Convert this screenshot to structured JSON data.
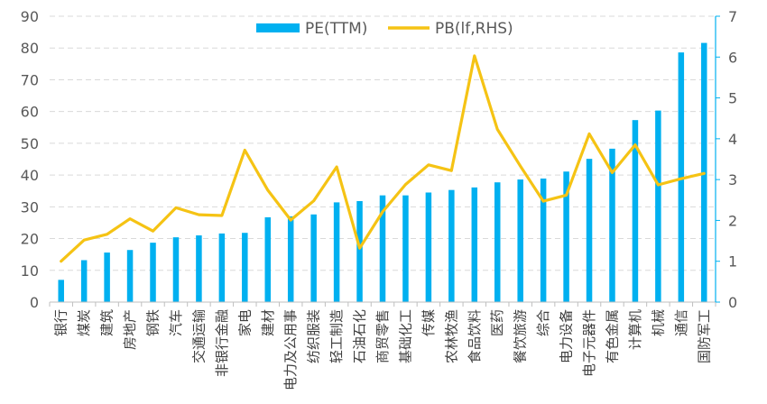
{
  "chart_data": {
    "type": "bar",
    "title": "",
    "xlabel": "",
    "ylabel": "",
    "ylim": [
      0,
      90
    ],
    "y2lim": [
      0,
      7
    ],
    "y_ticks": [
      "0",
      "10",
      "20",
      "30",
      "40",
      "50",
      "60",
      "70",
      "80",
      "90"
    ],
    "y2_ticks": [
      "0",
      "1",
      "2",
      "3",
      "4",
      "5",
      "6",
      "7"
    ],
    "grid": true,
    "legend_position": "top-center",
    "categories": [
      "银行",
      "煤炭",
      "建筑",
      "房地产",
      "钢铁",
      "汽车",
      "交通运输",
      "非银行金融",
      "家电",
      "建材",
      "电力及公用事",
      "纺织服装",
      "轻工制造",
      "石油石化",
      "商贸零售",
      "基础化工",
      "传媒",
      "农林牧渔",
      "食品饮料",
      "医药",
      "餐饮旅游",
      "综合",
      "电力设备",
      "电子元器件",
      "有色金属",
      "计算机",
      "机械",
      "通信",
      "国防军工"
    ],
    "series": [
      {
        "name": "PE(TTM)",
        "type": "bar",
        "axis": "left",
        "color": "#00B0F0",
        "values": [
          7.0,
          13.2,
          15.6,
          16.4,
          18.7,
          20.4,
          21.0,
          21.6,
          21.8,
          26.7,
          27.0,
          27.6,
          31.4,
          31.8,
          33.6,
          33.6,
          34.5,
          35.3,
          36.1,
          37.7,
          38.6,
          38.9,
          41.1,
          45.1,
          48.3,
          57.3,
          60.3,
          78.6,
          81.6
        ]
      },
      {
        "name": "PB(lf,RHS)",
        "type": "line",
        "axis": "right",
        "color": "#F5C314",
        "values": [
          1.0,
          1.52,
          1.66,
          2.04,
          1.74,
          2.31,
          2.14,
          2.12,
          3.72,
          2.74,
          2.01,
          2.48,
          3.31,
          1.32,
          2.21,
          2.88,
          3.36,
          3.22,
          6.03,
          4.23,
          3.33,
          2.47,
          2.62,
          4.12,
          3.17,
          3.85,
          2.87,
          3.02,
          3.15
        ]
      }
    ]
  }
}
